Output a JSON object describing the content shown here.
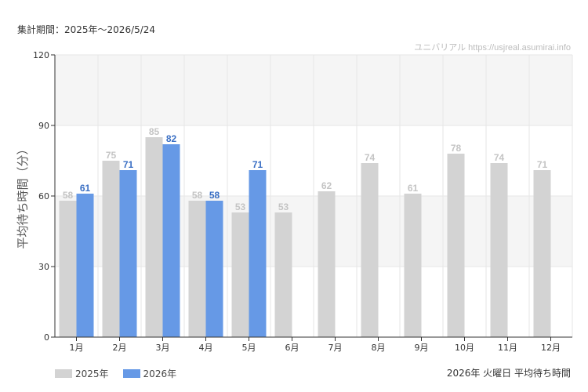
{
  "header": {
    "period_label": "集計期間：2025年～2026/5/24"
  },
  "footer": {
    "title": "2026年 火曜日 平均待ち時間"
  },
  "colors": {
    "series_2025": "#d3d3d3",
    "series_2026": "#6699e6",
    "label_2025": "#c4c4c4",
    "label_2026": "#3a6fc4",
    "band": "#f5f5f5",
    "grid": "#e6e6e6",
    "axis": "#333333"
  },
  "chart_data": {
    "type": "bar",
    "watermark": "ユニバリアル  https://usjreal.asumirai.info",
    "ylabel": "平均待ち時間（分）",
    "xlabel": "",
    "ylim": [
      0,
      120
    ],
    "yticks": [
      0,
      30,
      60,
      90,
      120
    ],
    "grid": true,
    "legend": "bottom-left",
    "categories": [
      "1月",
      "2月",
      "3月",
      "4月",
      "5月",
      "6月",
      "7月",
      "8月",
      "9月",
      "10月",
      "11月",
      "12月"
    ],
    "series": [
      {
        "name": "2025年",
        "values": [
          58,
          75,
          85,
          58,
          53,
          53,
          62,
          74,
          61,
          78,
          74,
          71
        ]
      },
      {
        "name": "2026年",
        "values": [
          61,
          71,
          82,
          58,
          71,
          null,
          null,
          null,
          null,
          null,
          null,
          null
        ]
      }
    ]
  }
}
